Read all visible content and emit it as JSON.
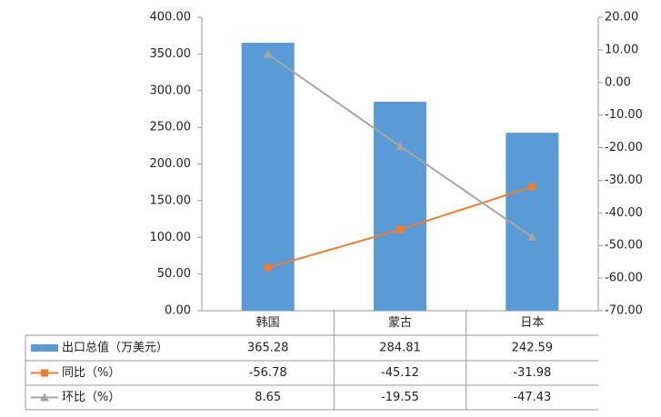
{
  "chart_data": {
    "type": "bar-line-table",
    "categories": [
      "韩国",
      "蒙古",
      "日本"
    ],
    "series": [
      {
        "name": "出口总值（万美元）",
        "type": "bar",
        "color": "#5b9bd5",
        "values": [
          365.28,
          284.81,
          242.59
        ]
      },
      {
        "name": "同比（%）",
        "type": "line",
        "marker": "square",
        "axis": "y2",
        "color": "#ed7d31",
        "values": [
          -56.78,
          -45.12,
          -31.98
        ]
      },
      {
        "name": "环比（%）",
        "type": "line",
        "marker": "triangle",
        "axis": "y2",
        "color": "#a5a5a5",
        "values": [
          8.65,
          -19.55,
          -47.43
        ]
      }
    ],
    "ylim": [
      0,
      400
    ],
    "yticks": [
      {
        "value": 0,
        "label": "0.00"
      },
      {
        "value": 50,
        "label": "50.00"
      },
      {
        "value": 100,
        "label": "100.00"
      },
      {
        "value": 150,
        "label": "150.00"
      },
      {
        "value": 200,
        "label": "200.00"
      },
      {
        "value": 250,
        "label": "250.00"
      },
      {
        "value": 300,
        "label": "300.00"
      },
      {
        "value": 350,
        "label": "350.00"
      },
      {
        "value": 400,
        "label": "400.00"
      }
    ],
    "y2lim": [
      -70,
      20
    ],
    "y2ticks": [
      {
        "value": -70,
        "label": "-70.00"
      },
      {
        "value": -60,
        "label": "-60.00"
      },
      {
        "value": -50,
        "label": "-50.00"
      },
      {
        "value": -40,
        "label": "-40.00"
      },
      {
        "value": -30,
        "label": "-30.00"
      },
      {
        "value": -20,
        "label": "-20.00"
      },
      {
        "value": -10,
        "label": "-10.00"
      },
      {
        "value": 0,
        "label": "0.00"
      },
      {
        "value": 10,
        "label": "10.00"
      },
      {
        "value": 20,
        "label": "20.00"
      }
    ],
    "grid": false
  }
}
